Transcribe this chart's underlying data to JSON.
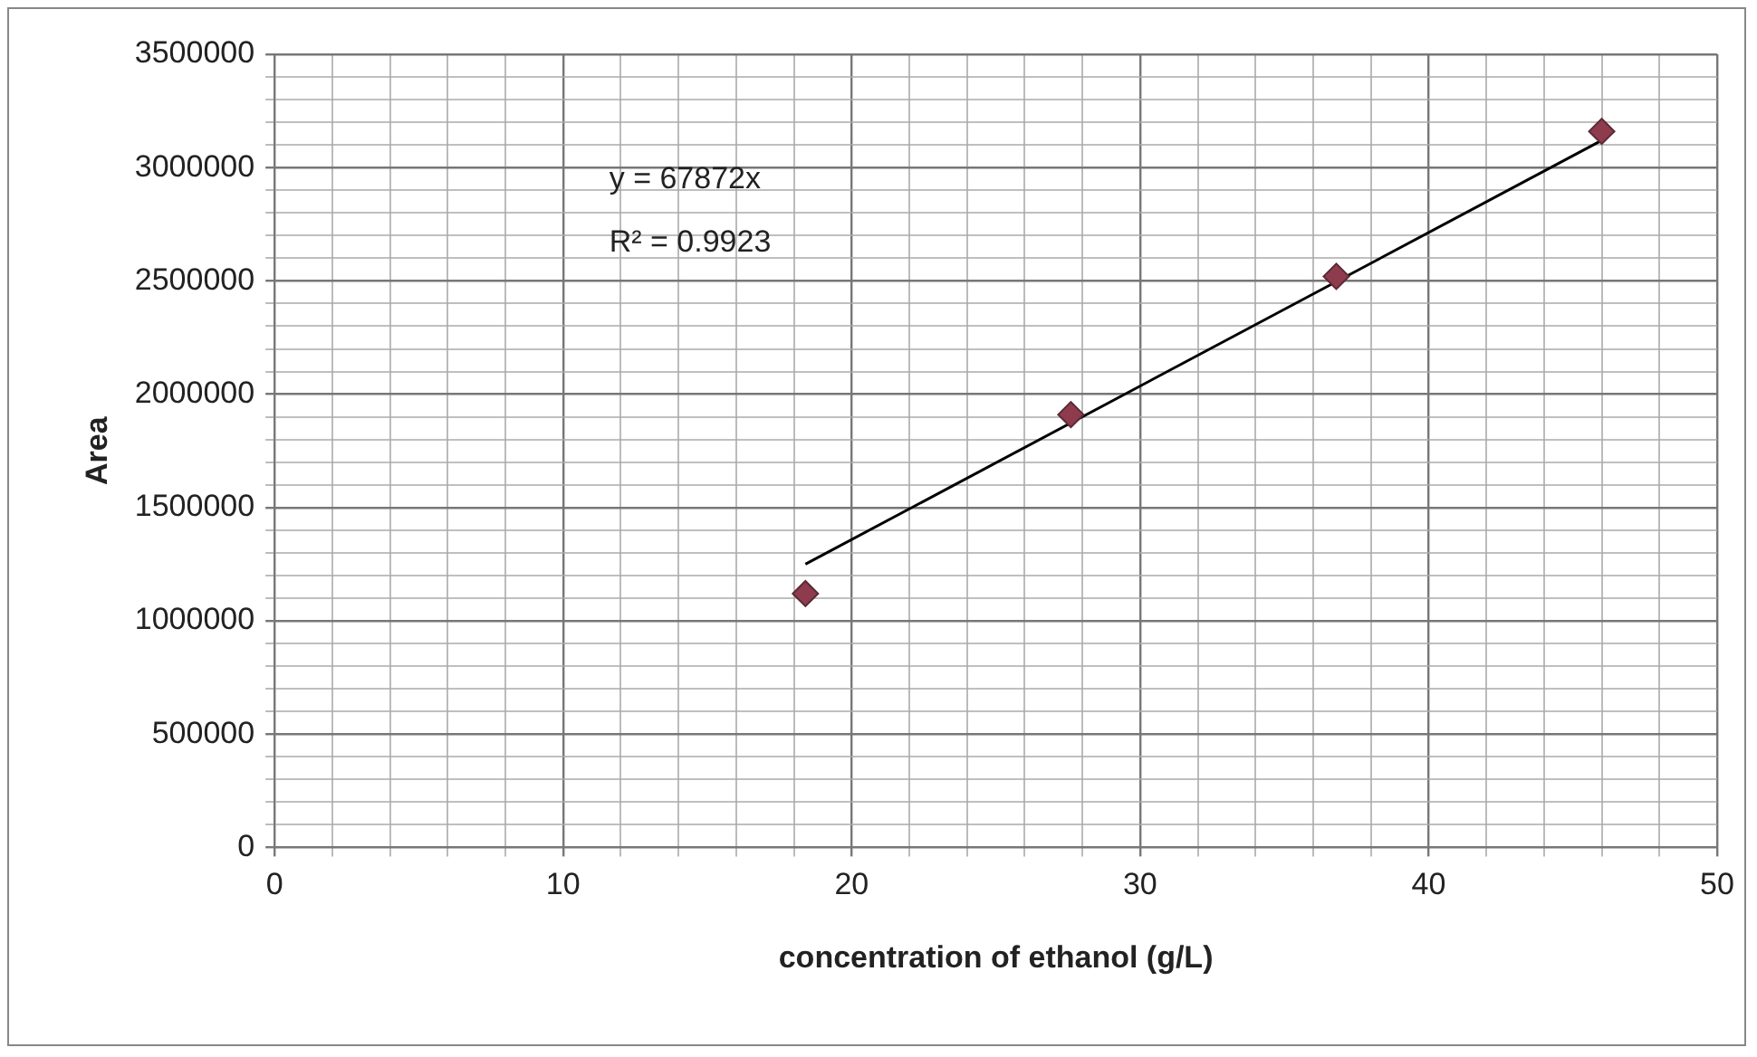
{
  "chart_data": {
    "type": "scatter",
    "xlabel": "concentration of ethanol (g/L)",
    "ylabel": "Area",
    "series": [
      {
        "type": "scatter",
        "color": "#8e3b4e",
        "marker": "diamond",
        "x": [
          18.4,
          27.6,
          36.8,
          46.0
        ],
        "values": [
          1120000,
          1910000,
          2520000,
          3160000
        ]
      },
      {
        "type": "line",
        "color": "#000000",
        "marker": "none",
        "x": [
          18.4,
          46.0
        ],
        "values": [
          1250000,
          3120000
        ]
      }
    ],
    "annotations": [
      "y = 67872x",
      "R² = 0.9923"
    ],
    "xlim": [
      0,
      50
    ],
    "xticks": [
      0,
      {
        "value": 2,
        "label": null
      },
      {
        "value": 4,
        "label": null
      },
      {
        "value": 6,
        "label": null
      },
      {
        "value": 8,
        "label": null
      },
      10,
      {
        "value": 12,
        "label": null
      },
      {
        "value": 14,
        "label": null
      },
      {
        "value": 16,
        "label": null
      },
      {
        "value": 18,
        "label": null
      },
      20,
      {
        "value": 22,
        "label": null
      },
      {
        "value": 24,
        "label": null
      },
      {
        "value": 26,
        "label": null
      },
      {
        "value": 28,
        "label": null
      },
      30,
      {
        "value": 32,
        "label": null
      },
      {
        "value": 34,
        "label": null
      },
      {
        "value": 36,
        "label": null
      },
      {
        "value": 38,
        "label": null
      },
      40,
      {
        "value": 42,
        "label": null
      },
      {
        "value": 44,
        "label": null
      },
      {
        "value": 46,
        "label": null
      },
      {
        "value": 48,
        "label": null
      },
      50
    ],
    "ylim": [
      0,
      3500000
    ],
    "yticks": [
      0,
      {
        "value": 100000,
        "label": null
      },
      {
        "value": 200000,
        "label": null
      },
      {
        "value": 300000,
        "label": null
      },
      {
        "value": 400000,
        "label": null
      },
      500000,
      {
        "value": 600000,
        "label": null
      },
      {
        "value": 700000,
        "label": null
      },
      {
        "value": 800000,
        "label": null
      },
      {
        "value": 900000,
        "label": null
      },
      1000000,
      {
        "value": 1100000,
        "label": null
      },
      {
        "value": 1200000,
        "label": null
      },
      {
        "value": 1300000,
        "label": null
      },
      {
        "value": 1400000,
        "label": null
      },
      1500000,
      {
        "value": 1600000,
        "label": null
      },
      {
        "value": 1700000,
        "label": null
      },
      {
        "value": 1800000,
        "label": null
      },
      {
        "value": 1900000,
        "label": null
      },
      2000000,
      {
        "value": 2100000,
        "label": null
      },
      {
        "value": 2200000,
        "label": null
      },
      {
        "value": 2300000,
        "label": null
      },
      {
        "value": 2400000,
        "label": null
      },
      2500000,
      {
        "value": 2600000,
        "label": null
      },
      {
        "value": 2700000,
        "label": null
      },
      {
        "value": 2800000,
        "label": null
      },
      {
        "value": 2900000,
        "label": null
      },
      3000000,
      {
        "value": 3100000,
        "label": null
      },
      {
        "value": 3200000,
        "label": null
      },
      {
        "value": 3300000,
        "label": null
      },
      {
        "value": 3400000,
        "label": null
      },
      3500000
    ],
    "grid": true,
    "legend": false
  }
}
